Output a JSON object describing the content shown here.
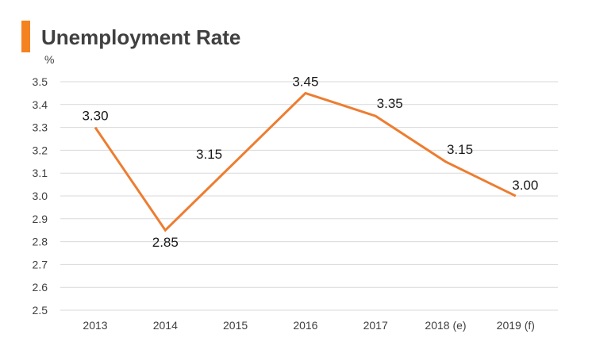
{
  "chart_data": {
    "type": "line",
    "title": "Unemployment Rate",
    "unit_label": "%",
    "categories": [
      "2013",
      "2014",
      "2015",
      "2016",
      "2017",
      "2018 (e)",
      "2019 (f)"
    ],
    "values": [
      3.3,
      2.85,
      3.15,
      3.45,
      3.35,
      3.15,
      3.0
    ],
    "data_labels": [
      "3.30",
      "2.85",
      "3.15",
      "3.45",
      "3.35",
      "3.15",
      "3.00"
    ],
    "ylim": [
      2.5,
      3.5
    ],
    "yticks": [
      "2.5",
      "2.6",
      "2.7",
      "2.8",
      "2.9",
      "3.0",
      "3.1",
      "3.2",
      "3.3",
      "3.4",
      "3.5"
    ],
    "grid": true,
    "colors": {
      "line": "#ed7d31",
      "accent": "#f58220",
      "grid": "#d9d9d9"
    }
  }
}
